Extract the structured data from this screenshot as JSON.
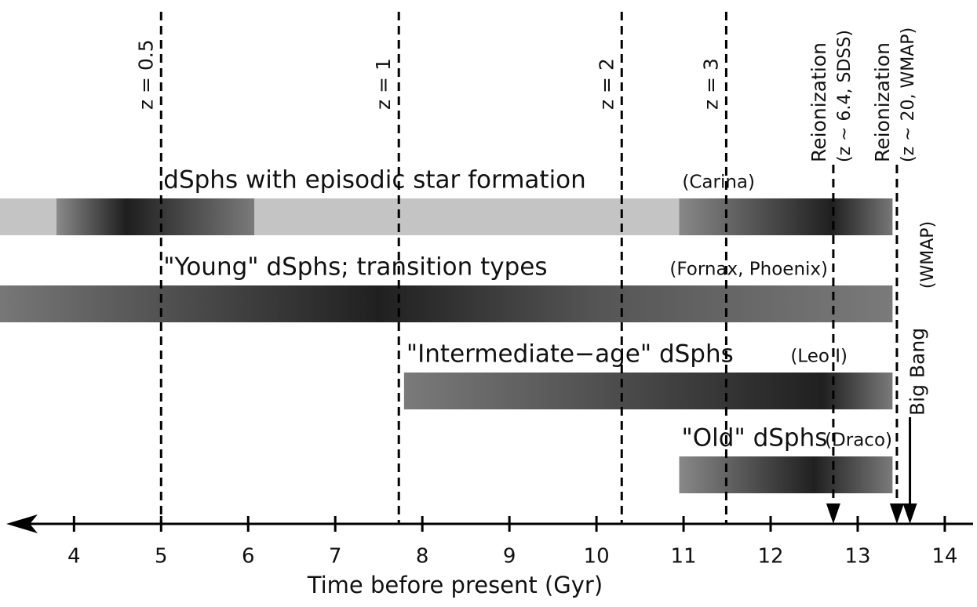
{
  "chart_data": {
    "type": "timeline",
    "xlabel": "Time before present (Gyr)",
    "xlim": [
      3.15,
      14.37
    ],
    "xticks": [
      4,
      5,
      6,
      7,
      8,
      9,
      10,
      11,
      12,
      13,
      14
    ],
    "redshifts": [
      {
        "label": "z = 0.5",
        "x": 5.0
      },
      {
        "label": "z = 1",
        "x": 7.73
      },
      {
        "label": "z = 2",
        "x": 10.29
      },
      {
        "label": "z = 3",
        "x": 11.49
      }
    ],
    "events": [
      {
        "label": "Reionization",
        "sublabel": "(z ~ 6.4, SDSS)",
        "x": 12.72
      },
      {
        "label": "Reionization",
        "sublabel": "(z ~ 20, WMAP)",
        "x": 13.45
      },
      {
        "label": "Big Bang",
        "x": 13.6
      }
    ],
    "side_note": "(WMAP)",
    "rows": [
      {
        "name": "dSphs with episodic star formation",
        "note": "(Carina)",
        "start": 3.15,
        "end": 13.4,
        "color_stops": [
          {
            "at": 3.15,
            "color": "#c4c4c4"
          },
          {
            "at": 3.8,
            "color": "#c4c4c4"
          },
          {
            "at": 3.8,
            "color": "#8a8a8a"
          },
          {
            "at": 4.6,
            "color": "#1e1e1e"
          },
          {
            "at": 6.07,
            "color": "#7a7a7a"
          },
          {
            "at": 6.07,
            "color": "#c4c4c4"
          },
          {
            "at": 10.95,
            "color": "#c4c4c4"
          },
          {
            "at": 10.95,
            "color": "#888888"
          },
          {
            "at": 12.7,
            "color": "#202020"
          },
          {
            "at": 13.4,
            "color": "#777777"
          }
        ]
      },
      {
        "name": "\"Young\" dSphs; transition types",
        "note": "(Fornax, Phoenix)",
        "start": 3.15,
        "end": 13.4,
        "color_stops": [
          {
            "at": 3.15,
            "color": "#777777"
          },
          {
            "at": 7.5,
            "color": "#202020"
          },
          {
            "at": 10.0,
            "color": "#555555"
          },
          {
            "at": 13.4,
            "color": "#7a7a7a"
          }
        ]
      },
      {
        "name": "\"Intermediate−age\" dSphs",
        "note": "(Leo I)",
        "start": 7.79,
        "end": 13.4,
        "color_stops": [
          {
            "at": 7.79,
            "color": "#7a7a7a"
          },
          {
            "at": 12.6,
            "color": "#202020"
          },
          {
            "at": 13.4,
            "color": "#7a7a7a"
          }
        ]
      },
      {
        "name": "\"Old\" dSphs",
        "note": "(Draco)",
        "start": 10.95,
        "end": 13.4,
        "color_stops": [
          {
            "at": 10.95,
            "color": "#888888"
          },
          {
            "at": 12.5,
            "color": "#202020"
          },
          {
            "at": 13.4,
            "color": "#7a7a7a"
          }
        ]
      }
    ]
  }
}
